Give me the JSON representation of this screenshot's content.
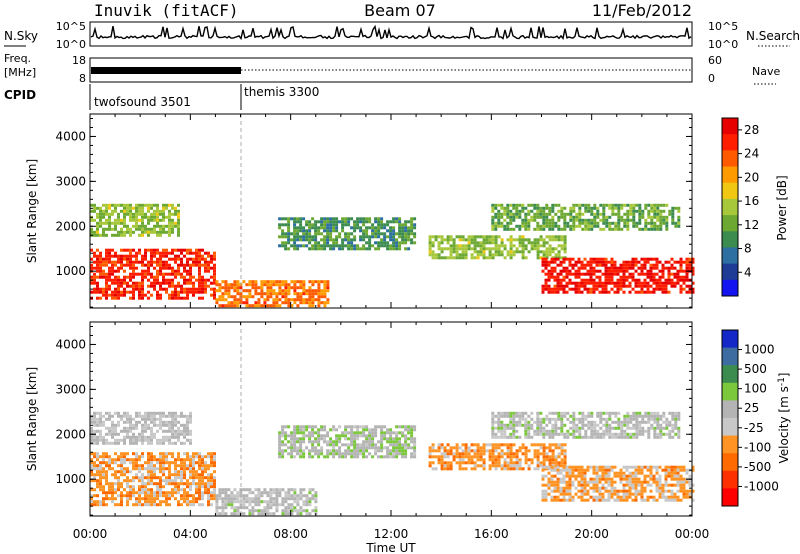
{
  "header": {
    "station": "Inuvik (fitACF)",
    "beam": "Beam 07",
    "date": "11/Feb/2012"
  },
  "summary_panels": {
    "nsky_label": "N.Sky",
    "nsky_ticks": [
      "10^5",
      "10^0"
    ],
    "nsearch_label": "N.Search",
    "nsearch_ticks": [
      "10^5",
      "10^0"
    ],
    "freq_label_line1": "Freq.",
    "freq_label_line2": "[MHz]",
    "freq_ticks": [
      "18",
      "8"
    ],
    "nave_label": "Nave",
    "nave_ticks": [
      "60",
      "0"
    ],
    "cpid_label": "CPID",
    "cpid_segments": [
      {
        "name": "twofsound 3501",
        "start_hour": 0,
        "end_hour": 6
      },
      {
        "name": "themis 3300",
        "start_hour": 6,
        "end_hour": 24
      }
    ]
  },
  "colors": {
    "power_scale": [
      "#1414f0",
      "#1e3c96",
      "#2c6fa0",
      "#3c8c50",
      "#6ca832",
      "#a8c83c",
      "#f0c814",
      "#ff9a00",
      "#ff5a00",
      "#ff1e00",
      "#e60000"
    ],
    "velocity_scale": [
      "#ff0000",
      "#ff3000",
      "#ff6a00",
      "#ff9424",
      "#c8c8c8",
      "#b4b4b4",
      "#7cc83c",
      "#3c8c50",
      "#3c6ca0",
      "#1428c8"
    ]
  },
  "chart_data": [
    {
      "type": "heatmap",
      "title": "Power",
      "xlabel": "",
      "ylabel": "Slant Range [km]",
      "xlim": [
        0,
        24
      ],
      "ylim": [
        180,
        4500
      ],
      "x_ticks": [
        "00:00",
        "04:00",
        "08:00",
        "12:00",
        "16:00",
        "20:00",
        "00:00"
      ],
      "y_ticks": [
        "1000",
        "2000",
        "3000",
        "4000"
      ],
      "colorbar_label": "Power [dB]",
      "colorbar_ticks": [
        "28",
        "24",
        "20",
        "16",
        "12",
        "8",
        "4"
      ],
      "colorbar_range": [
        0,
        30
      ],
      "echo_regions": [
        {
          "t0": 0.0,
          "t1": 5.0,
          "r0": 400,
          "r1": 1500,
          "value": 26
        },
        {
          "t0": 0.0,
          "t1": 3.5,
          "r0": 1800,
          "r1": 2500,
          "value": 14
        },
        {
          "t0": 5.0,
          "t1": 9.5,
          "r0": 250,
          "r1": 800,
          "value": 22
        },
        {
          "t0": 7.5,
          "t1": 13.0,
          "r0": 1500,
          "r1": 2200,
          "value": 10
        },
        {
          "t0": 13.5,
          "t1": 19.0,
          "r0": 1300,
          "r1": 1800,
          "value": 14
        },
        {
          "t0": 18.0,
          "t1": 24.0,
          "r0": 500,
          "r1": 1300,
          "value": 27
        },
        {
          "t0": 16.0,
          "t1": 23.5,
          "r0": 1900,
          "r1": 2500,
          "value": 12
        }
      ]
    },
    {
      "type": "heatmap",
      "title": "Velocity",
      "xlabel": "Time UT",
      "ylabel": "Slant Range [km]",
      "xlim": [
        0,
        24
      ],
      "ylim": [
        180,
        4500
      ],
      "x_ticks": [
        "00:00",
        "04:00",
        "08:00",
        "12:00",
        "16:00",
        "20:00",
        "00:00"
      ],
      "y_ticks": [
        "1000",
        "2000",
        "3000",
        "4000"
      ],
      "colorbar_label": "Velocity [m s^-1]",
      "colorbar_ticks": [
        "1000",
        "500",
        "100",
        "25",
        "-25",
        "-100",
        "-500",
        "-1000"
      ],
      "colorbar_range": [
        -1000,
        1000
      ],
      "echo_regions": [
        {
          "t0": 0.0,
          "t1": 5.0,
          "r0": 400,
          "r1": 1600,
          "value": -300
        },
        {
          "t0": 0.0,
          "t1": 4.0,
          "r0": 1800,
          "r1": 2500,
          "value": 0
        },
        {
          "t0": 5.0,
          "t1": 9.0,
          "r0": 200,
          "r1": 800,
          "value": 50
        },
        {
          "t0": 7.5,
          "t1": 13.0,
          "r0": 1500,
          "r1": 2200,
          "value": 150
        },
        {
          "t0": 13.5,
          "t1": 19.0,
          "r0": 1200,
          "r1": 1800,
          "value": -300
        },
        {
          "t0": 18.0,
          "t1": 24.0,
          "r0": 500,
          "r1": 1300,
          "value": -250
        },
        {
          "t0": 16.0,
          "t1": 23.5,
          "r0": 1900,
          "r1": 2500,
          "value": 80
        }
      ]
    }
  ]
}
